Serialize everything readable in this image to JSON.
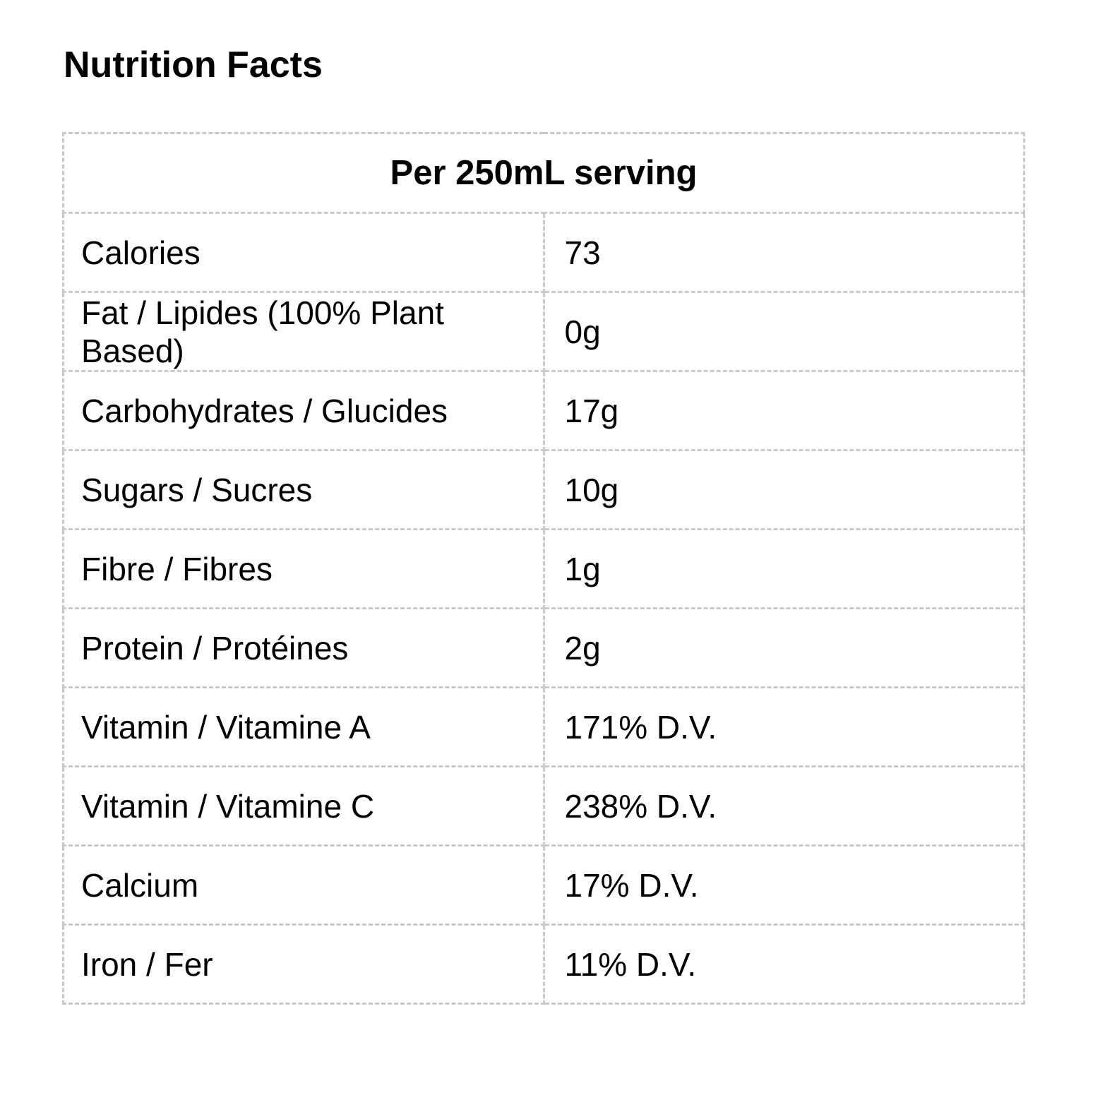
{
  "page": {
    "title": "Nutrition Facts"
  },
  "table": {
    "header": "Per 250mL serving",
    "rows": [
      {
        "label": "Calories",
        "value": "73"
      },
      {
        "label": "Fat / Lipides (100% Plant Based)",
        "value": "0g"
      },
      {
        "label": "Carbohydrates / Glucides",
        "value": "17g"
      },
      {
        "label": "Sugars / Sucres",
        "value": "10g"
      },
      {
        "label": "Fibre / Fibres",
        "value": "1g"
      },
      {
        "label": "Protein / Protéines",
        "value": "2g"
      },
      {
        "label": "Vitamin / Vitamine A",
        "value": "171% D.V."
      },
      {
        "label": "Vitamin / Vitamine C",
        "value": "238% D.V."
      },
      {
        "label": "Calcium",
        "value": "17% D.V."
      },
      {
        "label": "Iron / Fer",
        "value": "11% D.V."
      }
    ]
  },
  "colors": {
    "border": "#c9c9c9",
    "text": "#000000",
    "background": "#ffffff"
  }
}
